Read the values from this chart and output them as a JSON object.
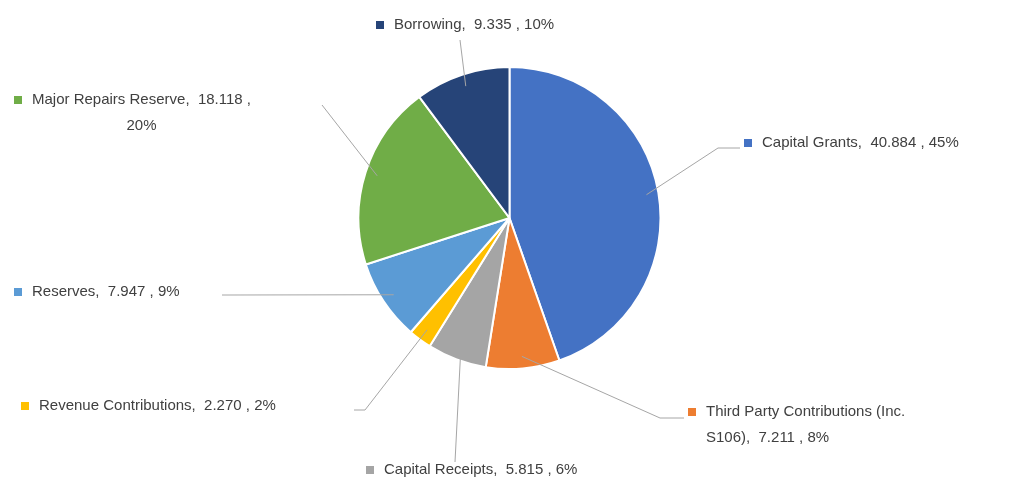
{
  "chart_data": {
    "type": "pie",
    "categories": [
      "Capital Grants",
      "Third Party Contributions (Inc. S106)",
      "Capital Receipts",
      "Revenue Contributions",
      "Reserves",
      "Major Repairs Reserve",
      "Borrowing"
    ],
    "values": [
      40.884,
      7.211,
      5.815,
      2.27,
      7.947,
      18.118,
      9.335
    ],
    "value_labels": [
      "40.884 , 45%",
      "7.211 , 8%",
      "5.815 , 6%",
      "2.270 , 2%",
      "7.947 , 9%",
      "18.118 , 20%",
      "9.335 , 10%"
    ],
    "colors": [
      "#4472c4",
      "#ed7d31",
      "#a5a5a5",
      "#ffc000",
      "#5b9bd5",
      "#70ad47",
      "#264478"
    ],
    "legend": "left"
  }
}
